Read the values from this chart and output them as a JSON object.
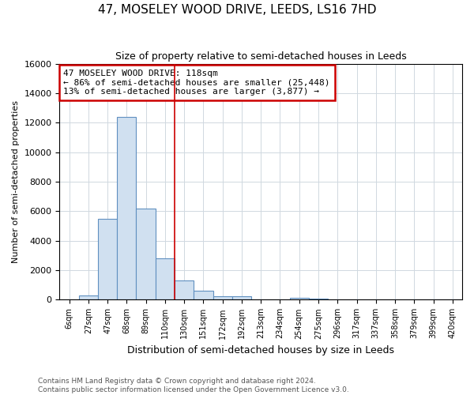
{
  "title": "47, MOSELEY WOOD DRIVE, LEEDS, LS16 7HD",
  "subtitle": "Size of property relative to semi-detached houses in Leeds",
  "xlabel": "Distribution of semi-detached houses by size in Leeds",
  "ylabel": "Number of semi-detached properties",
  "bar_labels": [
    "6sqm",
    "27sqm",
    "47sqm",
    "68sqm",
    "89sqm",
    "110sqm",
    "130sqm",
    "151sqm",
    "172sqm",
    "192sqm",
    "213sqm",
    "234sqm",
    "254sqm",
    "275sqm",
    "296sqm",
    "317sqm",
    "337sqm",
    "358sqm",
    "379sqm",
    "399sqm",
    "420sqm"
  ],
  "bar_values": [
    0,
    300,
    5500,
    12400,
    6200,
    2800,
    1300,
    600,
    250,
    250,
    0,
    0,
    150,
    100,
    0,
    0,
    0,
    0,
    0,
    0,
    0
  ],
  "bar_color": "#d0e0f0",
  "bar_edge_color": "#6090c0",
  "annotation_line1": "47 MOSELEY WOOD DRIVE: 118sqm",
  "annotation_line2": "← 86% of semi-detached houses are smaller (25,448)",
  "annotation_line3": "13% of semi-detached houses are larger (3,877) →",
  "property_line_x": 5.5,
  "ylim": [
    0,
    16000
  ],
  "yticks": [
    0,
    2000,
    4000,
    6000,
    8000,
    10000,
    12000,
    14000,
    16000
  ],
  "annotation_box_color": "#cc0000",
  "footer_text": "Contains HM Land Registry data © Crown copyright and database right 2024.\nContains public sector information licensed under the Open Government Licence v3.0.",
  "background_color": "#ffffff",
  "plot_background_color": "#ffffff",
  "grid_color": "#d0d8e0"
}
